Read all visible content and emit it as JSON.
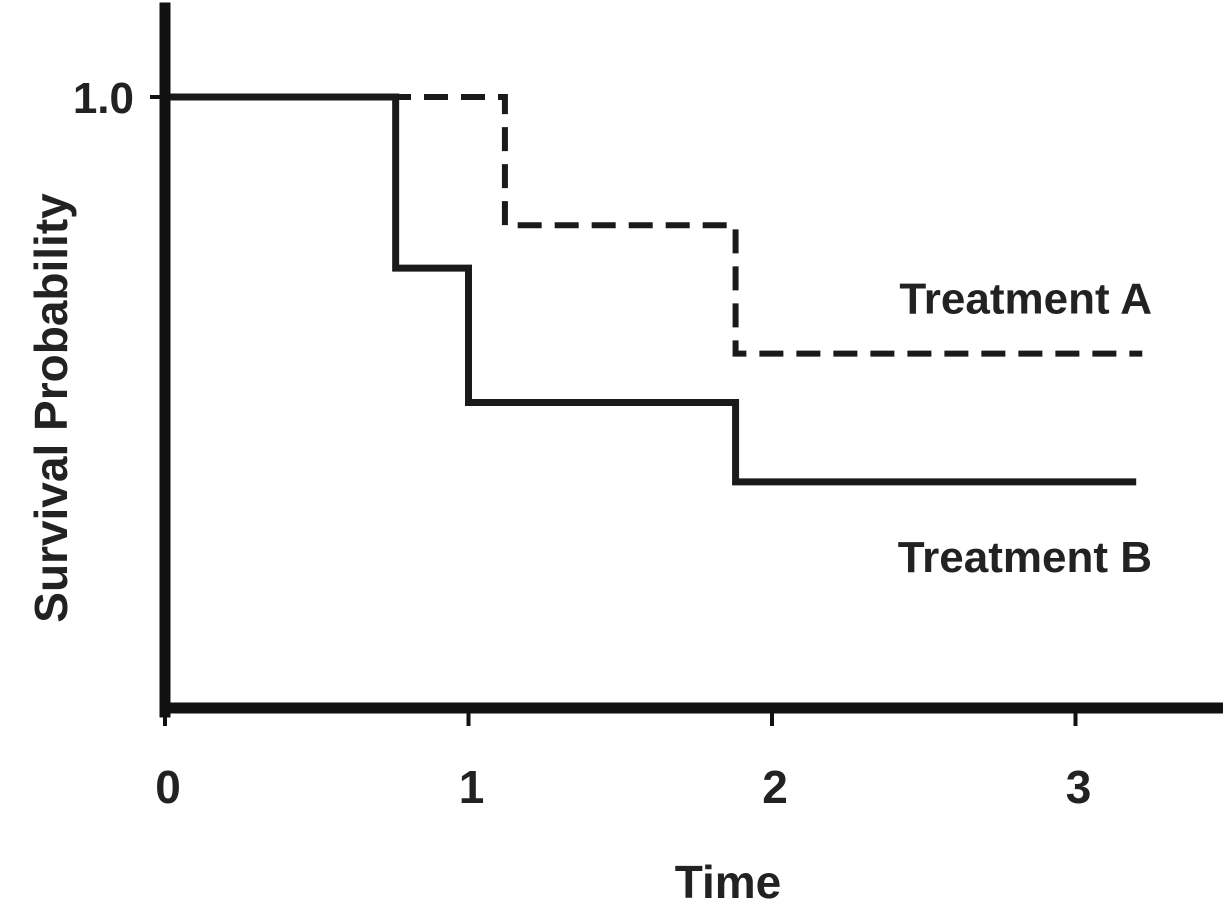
{
  "chart_data": {
    "type": "line",
    "step": "post",
    "xlabel": "Time",
    "ylabel": "Survival Probability",
    "xlim": [
      0,
      3.5
    ],
    "ylim": [
      0,
      1.0
    ],
    "x_ticks": [
      0,
      1,
      2,
      3
    ],
    "x_tick_labels": [
      "0",
      "1",
      "2",
      "3"
    ],
    "y_ticks": [
      1.0
    ],
    "y_tick_labels": [
      "1.0"
    ],
    "grid": false,
    "series": [
      {
        "name": "Treatment A",
        "style": "dashed",
        "color": "#1a1a1a",
        "x": [
          0,
          1.12,
          1.88,
          3.22
        ],
        "y": [
          1.0,
          0.79,
          0.58,
          0.58
        ]
      },
      {
        "name": "Treatment B",
        "style": "solid",
        "color": "#1a1a1a",
        "x": [
          0,
          0.76,
          1.0,
          1.88,
          3.2
        ],
        "y": [
          1.0,
          0.72,
          0.5,
          0.37,
          0.37
        ]
      }
    ]
  }
}
